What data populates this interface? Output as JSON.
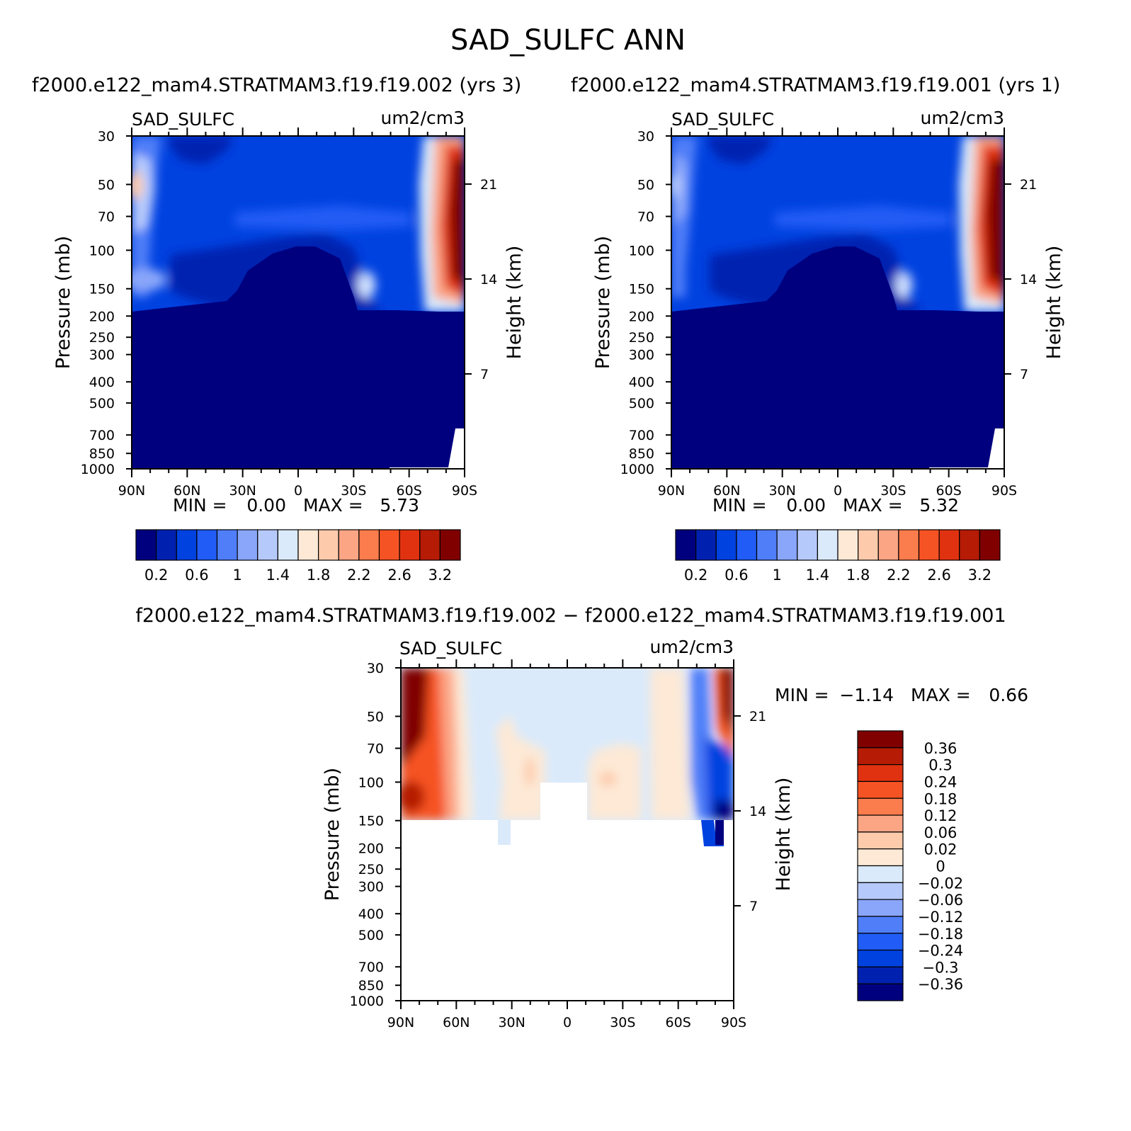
{
  "title": "SAD_SULFC ANN",
  "subtitle_left": "f2000.e122_mam4.STRATMAM3.f19.f19.002 (yrs 3)",
  "subtitle_right": "f2000.e122_mam4.STRATMAM3.f19.f19.001 (yrs 1)",
  "diff_title": "f2000.e122_mam4.STRATMAM3.f19.f19.002 − f2000.e122_mam4.STRATMAM3.f19.f19.001",
  "colors": {
    "main_scale": [
      "#00007f",
      "#0021b0",
      "#0042e0",
      "#205cf5",
      "#4f7ef8",
      "#89a6fa",
      "#b6c9fb",
      "#daeafb",
      "#fde9d6",
      "#fdcbac",
      "#fca585",
      "#fb7c4c",
      "#f65324",
      "#e03210",
      "#b51b05",
      "#800000"
    ],
    "diff_scale": [
      "#00007f",
      "#0021b0",
      "#0042e0",
      "#205cf5",
      "#4f7ef8",
      "#89a6fa",
      "#b6c9fb",
      "#daeafb",
      "#fde9d6",
      "#fdcbac",
      "#fca585",
      "#fb7c4c",
      "#f65324",
      "#e03210",
      "#b51b05",
      "#800000"
    ]
  },
  "chart_data": [
    {
      "type": "heatmap",
      "name": "left",
      "variable_label": "SAD_SULFC",
      "units_label": "um2/cm3",
      "xlabel": "",
      "ylabel": "Pressure (mb)",
      "y2label": "Height (km)",
      "x_ticks": [
        "90N",
        "60N",
        "30N",
        "0",
        "30S",
        "60S",
        "90S"
      ],
      "y_ticks": [
        "30",
        "50",
        "70",
        "100",
        "150",
        "200",
        "250",
        "300",
        "400",
        "500",
        "700",
        "850",
        "1000"
      ],
      "y2_ticks": [
        "21",
        "14",
        "7"
      ],
      "min_text": "MIN =",
      "min_value": "0.00",
      "max_text": "MAX =",
      "max_value": "5.73",
      "colorbar_labels": [
        "0.2",
        "0.6",
        "1",
        "1.4",
        "1.8",
        "2.2",
        "2.6",
        "3.2"
      ]
    },
    {
      "type": "heatmap",
      "name": "right",
      "variable_label": "SAD_SULFC",
      "units_label": "um2/cm3",
      "xlabel": "",
      "ylabel": "Pressure (mb)",
      "y2label": "Height (km)",
      "x_ticks": [
        "90N",
        "60N",
        "30N",
        "0",
        "30S",
        "60S",
        "90S"
      ],
      "y_ticks": [
        "30",
        "50",
        "70",
        "100",
        "150",
        "200",
        "250",
        "300",
        "400",
        "500",
        "700",
        "850",
        "1000"
      ],
      "y2_ticks": [
        "21",
        "14",
        "7"
      ],
      "min_text": "MIN =",
      "min_value": "0.00",
      "max_text": "MAX =",
      "max_value": "5.32",
      "colorbar_labels": [
        "0.2",
        "0.6",
        "1",
        "1.4",
        "1.8",
        "2.2",
        "2.6",
        "3.2"
      ]
    },
    {
      "type": "heatmap",
      "name": "diff",
      "variable_label": "SAD_SULFC",
      "units_label": "um2/cm3",
      "xlabel": "",
      "ylabel": "Pressure (mb)",
      "y2label": "Height (km)",
      "x_ticks": [
        "90N",
        "60N",
        "30N",
        "0",
        "30S",
        "60S",
        "90S"
      ],
      "y_ticks": [
        "30",
        "50",
        "70",
        "100",
        "150",
        "200",
        "250",
        "300",
        "400",
        "500",
        "700",
        "850",
        "1000"
      ],
      "y2_ticks": [
        "21",
        "14",
        "7"
      ],
      "min_text": "MIN =",
      "min_value": "−1.14",
      "max_text": "MAX =",
      "max_value": "0.66",
      "colorbar_labels": [
        "0.36",
        "0.3",
        "0.24",
        "0.18",
        "0.12",
        "0.06",
        "0.02",
        "0",
        "−0.02",
        "−0.06",
        "−0.12",
        "−0.18",
        "−0.24",
        "−0.3",
        "−0.36"
      ]
    }
  ]
}
